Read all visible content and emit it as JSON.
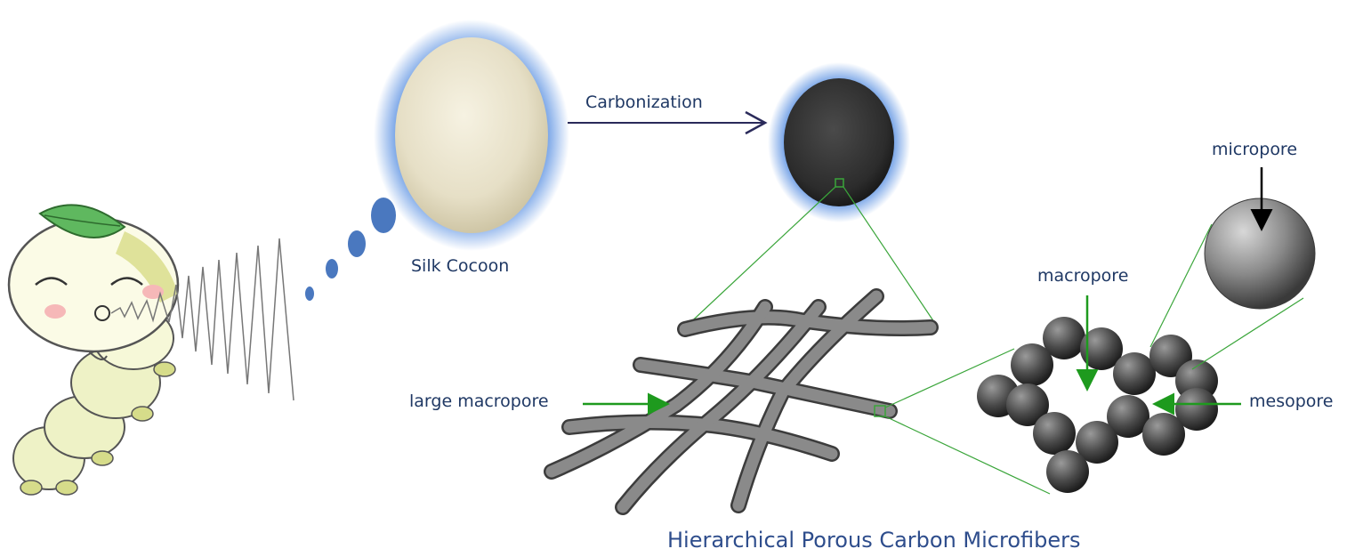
{
  "labels": {
    "silk_cocoon": "Silk Cocoon",
    "carbonization": "Carbonization",
    "large_macropore": "large macropore",
    "macropore": "macropore",
    "mesopore": "mesopore",
    "micropore": "micropore",
    "title": "Hierarchical Porous Carbon Microfibers"
  },
  "colors": {
    "text": "#1f3864",
    "green_arrow": "#1e9a1e",
    "green_line": "#3aa53a",
    "blue_glow": "#3a7bdc",
    "dots": "#4a78bf",
    "fiber": "#6e6e6e"
  }
}
